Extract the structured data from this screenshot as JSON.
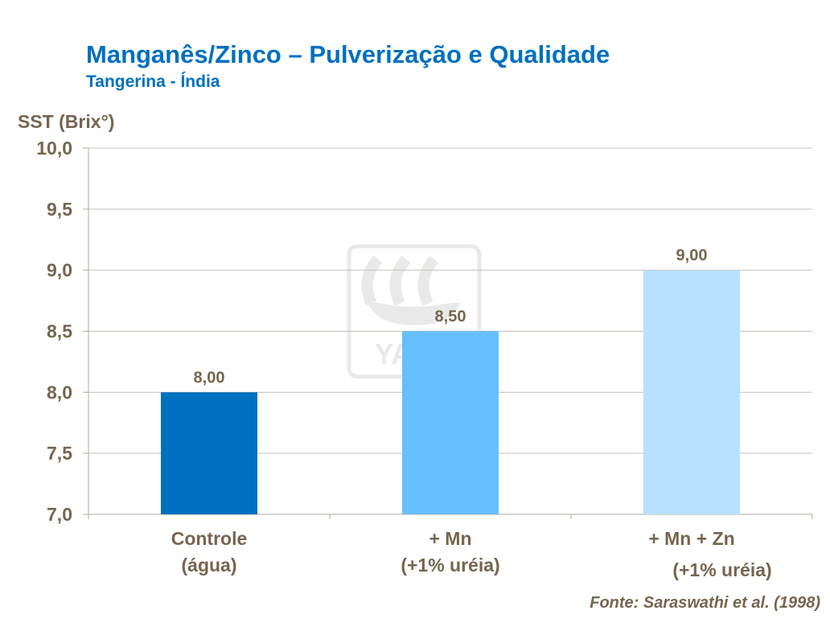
{
  "title": "Manganês/Zinco – Pulverização e Qualidade",
  "subtitle": "Tangerina - Índia",
  "source": "Fonte: Saraswathi et al. (1998)",
  "watermark_logo": "YARA",
  "chart_data": {
    "type": "bar",
    "ylabel": "SST (Brix°)",
    "ylim": [
      7.0,
      10.0
    ],
    "yticks": [
      "7,0",
      "7,5",
      "8,0",
      "8,5",
      "9,0",
      "9,5",
      "10,0"
    ],
    "ytick_values": [
      7.0,
      7.5,
      8.0,
      8.5,
      9.0,
      9.5,
      10.0
    ],
    "grid": true,
    "categories": [
      [
        "Controle",
        "(água)"
      ],
      [
        "+ Mn",
        "(+1% uréia)"
      ],
      [
        "+ Mn + Zn",
        "(+1% uréia)"
      ]
    ],
    "values": [
      8.0,
      8.5,
      9.0
    ],
    "data_labels": [
      "8,00",
      "8,50",
      "9,00"
    ],
    "colors": [
      "#0070c0",
      "#66bfff",
      "#b8e0ff"
    ]
  }
}
